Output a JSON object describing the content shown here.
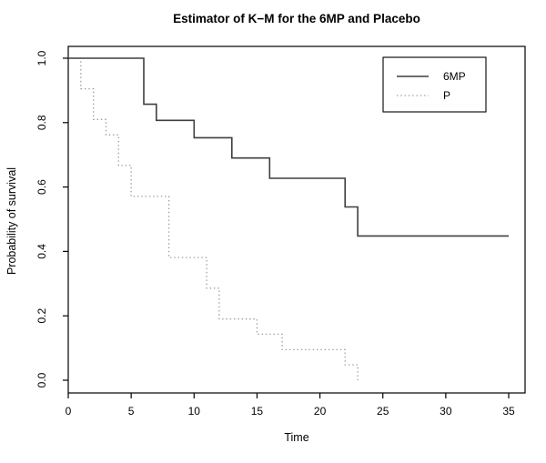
{
  "window": {
    "background": "#ffffff"
  },
  "chart_data": {
    "type": "line",
    "subtype": "kaplan-meier-step",
    "title": "Estimator of K−M for the 6MP and Placebo",
    "xlabel": "Time",
    "ylabel": "Probability of survival",
    "xlim": [
      0,
      36.4
    ],
    "ylim": [
      -0.04,
      1.04
    ],
    "x_ticks": [
      0,
      5,
      10,
      15,
      20,
      25,
      30,
      35
    ],
    "y_ticks": [
      0.0,
      0.2,
      0.4,
      0.6,
      0.8,
      1.0
    ],
    "grid": false,
    "box": true,
    "colors": {
      "axis": "#000000",
      "solid_line": "#3f3f3f",
      "dotted_line": "#9c9c9c"
    },
    "legend": {
      "position": "top-right",
      "entries": [
        {
          "label": "6MP",
          "style": "solid"
        },
        {
          "label": "P",
          "style": "dotted"
        }
      ]
    },
    "series": [
      {
        "name": "P",
        "style": "dotted",
        "color": "#9c9c9c",
        "end_t": 23,
        "steps": [
          [
            0,
            1.0
          ],
          [
            1,
            0.905
          ],
          [
            2,
            0.81
          ],
          [
            3,
            0.762
          ],
          [
            4,
            0.667
          ],
          [
            5,
            0.571
          ],
          [
            8,
            0.381
          ],
          [
            11,
            0.286
          ],
          [
            12,
            0.19
          ],
          [
            15,
            0.143
          ],
          [
            17,
            0.095
          ],
          [
            22,
            0.048
          ],
          [
            23,
            0.0
          ]
        ]
      },
      {
        "name": "6MP",
        "style": "solid",
        "color": "#3f3f3f",
        "end_t": 35,
        "steps": [
          [
            0,
            1.0
          ],
          [
            6,
            0.857
          ],
          [
            7,
            0.807
          ],
          [
            10,
            0.753
          ],
          [
            13,
            0.69
          ],
          [
            16,
            0.627
          ],
          [
            22,
            0.538
          ],
          [
            23,
            0.448
          ]
        ]
      }
    ]
  }
}
